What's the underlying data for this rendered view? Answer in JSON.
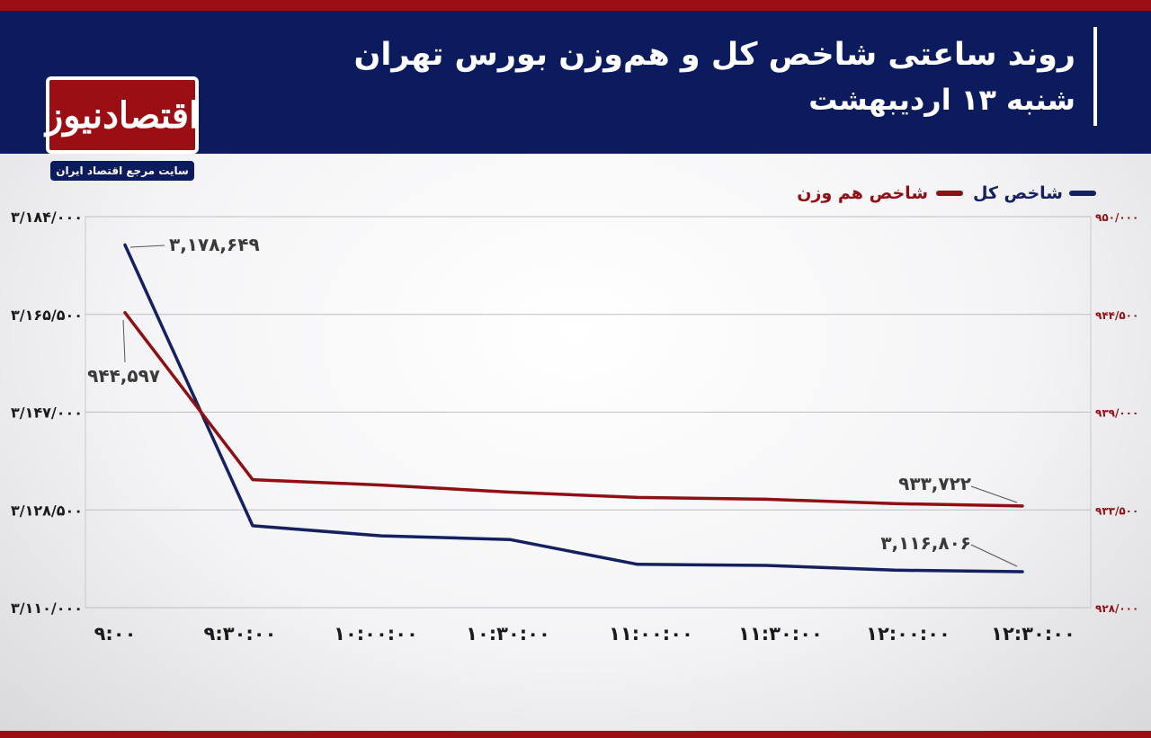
{
  "header": {
    "title": "روند ساعتی شاخص کل و هم‌وزن بورس تهران",
    "subtitle": "شنبه ۱۳ اردیبهشت"
  },
  "logo": {
    "name": "اقتصادنیوز",
    "tagline": "سایت مرجع اقتصاد ایران"
  },
  "colors": {
    "header_bg": "#0c1b5e",
    "accent_red": "#9b0f14",
    "series_total": "#142060",
    "series_equal": "#8e1015"
  },
  "chart_data": {
    "type": "line",
    "title": "روند ساعتی شاخص کل و هم‌وزن بورس تهران",
    "x": [
      "۹:۰۰",
      "۹:۳۰:۰۰",
      "۱۰:۰۰:۰۰",
      "۱۰:۳۰:۰۰",
      "۱۱:۰۰:۰۰",
      "۱۱:۳۰:۰۰",
      "۱۲:۰۰:۰۰",
      "۱۲:۳۰:۰۰"
    ],
    "series": [
      {
        "name": "شاخص کل",
        "axis": "left",
        "values": [
          3178649,
          3125500,
          3123600,
          3122900,
          3118200,
          3118000,
          3117100,
          3116806
        ],
        "labels": [
          {
            "index": 0,
            "text": "۳,۱۷۸,۶۴۹"
          },
          {
            "index": 7,
            "text": "۳,۱۱۶,۸۰۶"
          }
        ]
      },
      {
        "name": "شاخص هم وزن",
        "axis": "right",
        "values": [
          944597,
          935200,
          934900,
          934500,
          934200,
          934100,
          933850,
          933722
        ],
        "labels": [
          {
            "index": 0,
            "text": "۹۴۴,۵۹۷"
          },
          {
            "index": 7,
            "text": "۹۳۳,۷۲۲"
          }
        ]
      }
    ],
    "y_left": {
      "ylim": [
        3110000,
        3184000
      ],
      "ticks": [
        3110000,
        3128500,
        3147000,
        3165500,
        3184000
      ],
      "tick_labels": [
        "۳/۱۱۰/۰۰۰",
        "۳/۱۲۸/۵۰۰",
        "۳/۱۴۷/۰۰۰",
        "۳/۱۶۵/۵۰۰",
        "۳/۱۸۴/۰۰۰"
      ]
    },
    "y_right": {
      "ylim": [
        928000,
        950000
      ],
      "ticks": [
        928000,
        933500,
        939000,
        944500,
        950000
      ],
      "tick_labels": [
        "۹۲۸/۰۰۰",
        "۹۳۳/۵۰۰",
        "۹۳۹/۰۰۰",
        "۹۴۴/۵۰۰",
        "۹۵۰/۰۰۰"
      ]
    },
    "grid": true,
    "legend": "top-right"
  }
}
